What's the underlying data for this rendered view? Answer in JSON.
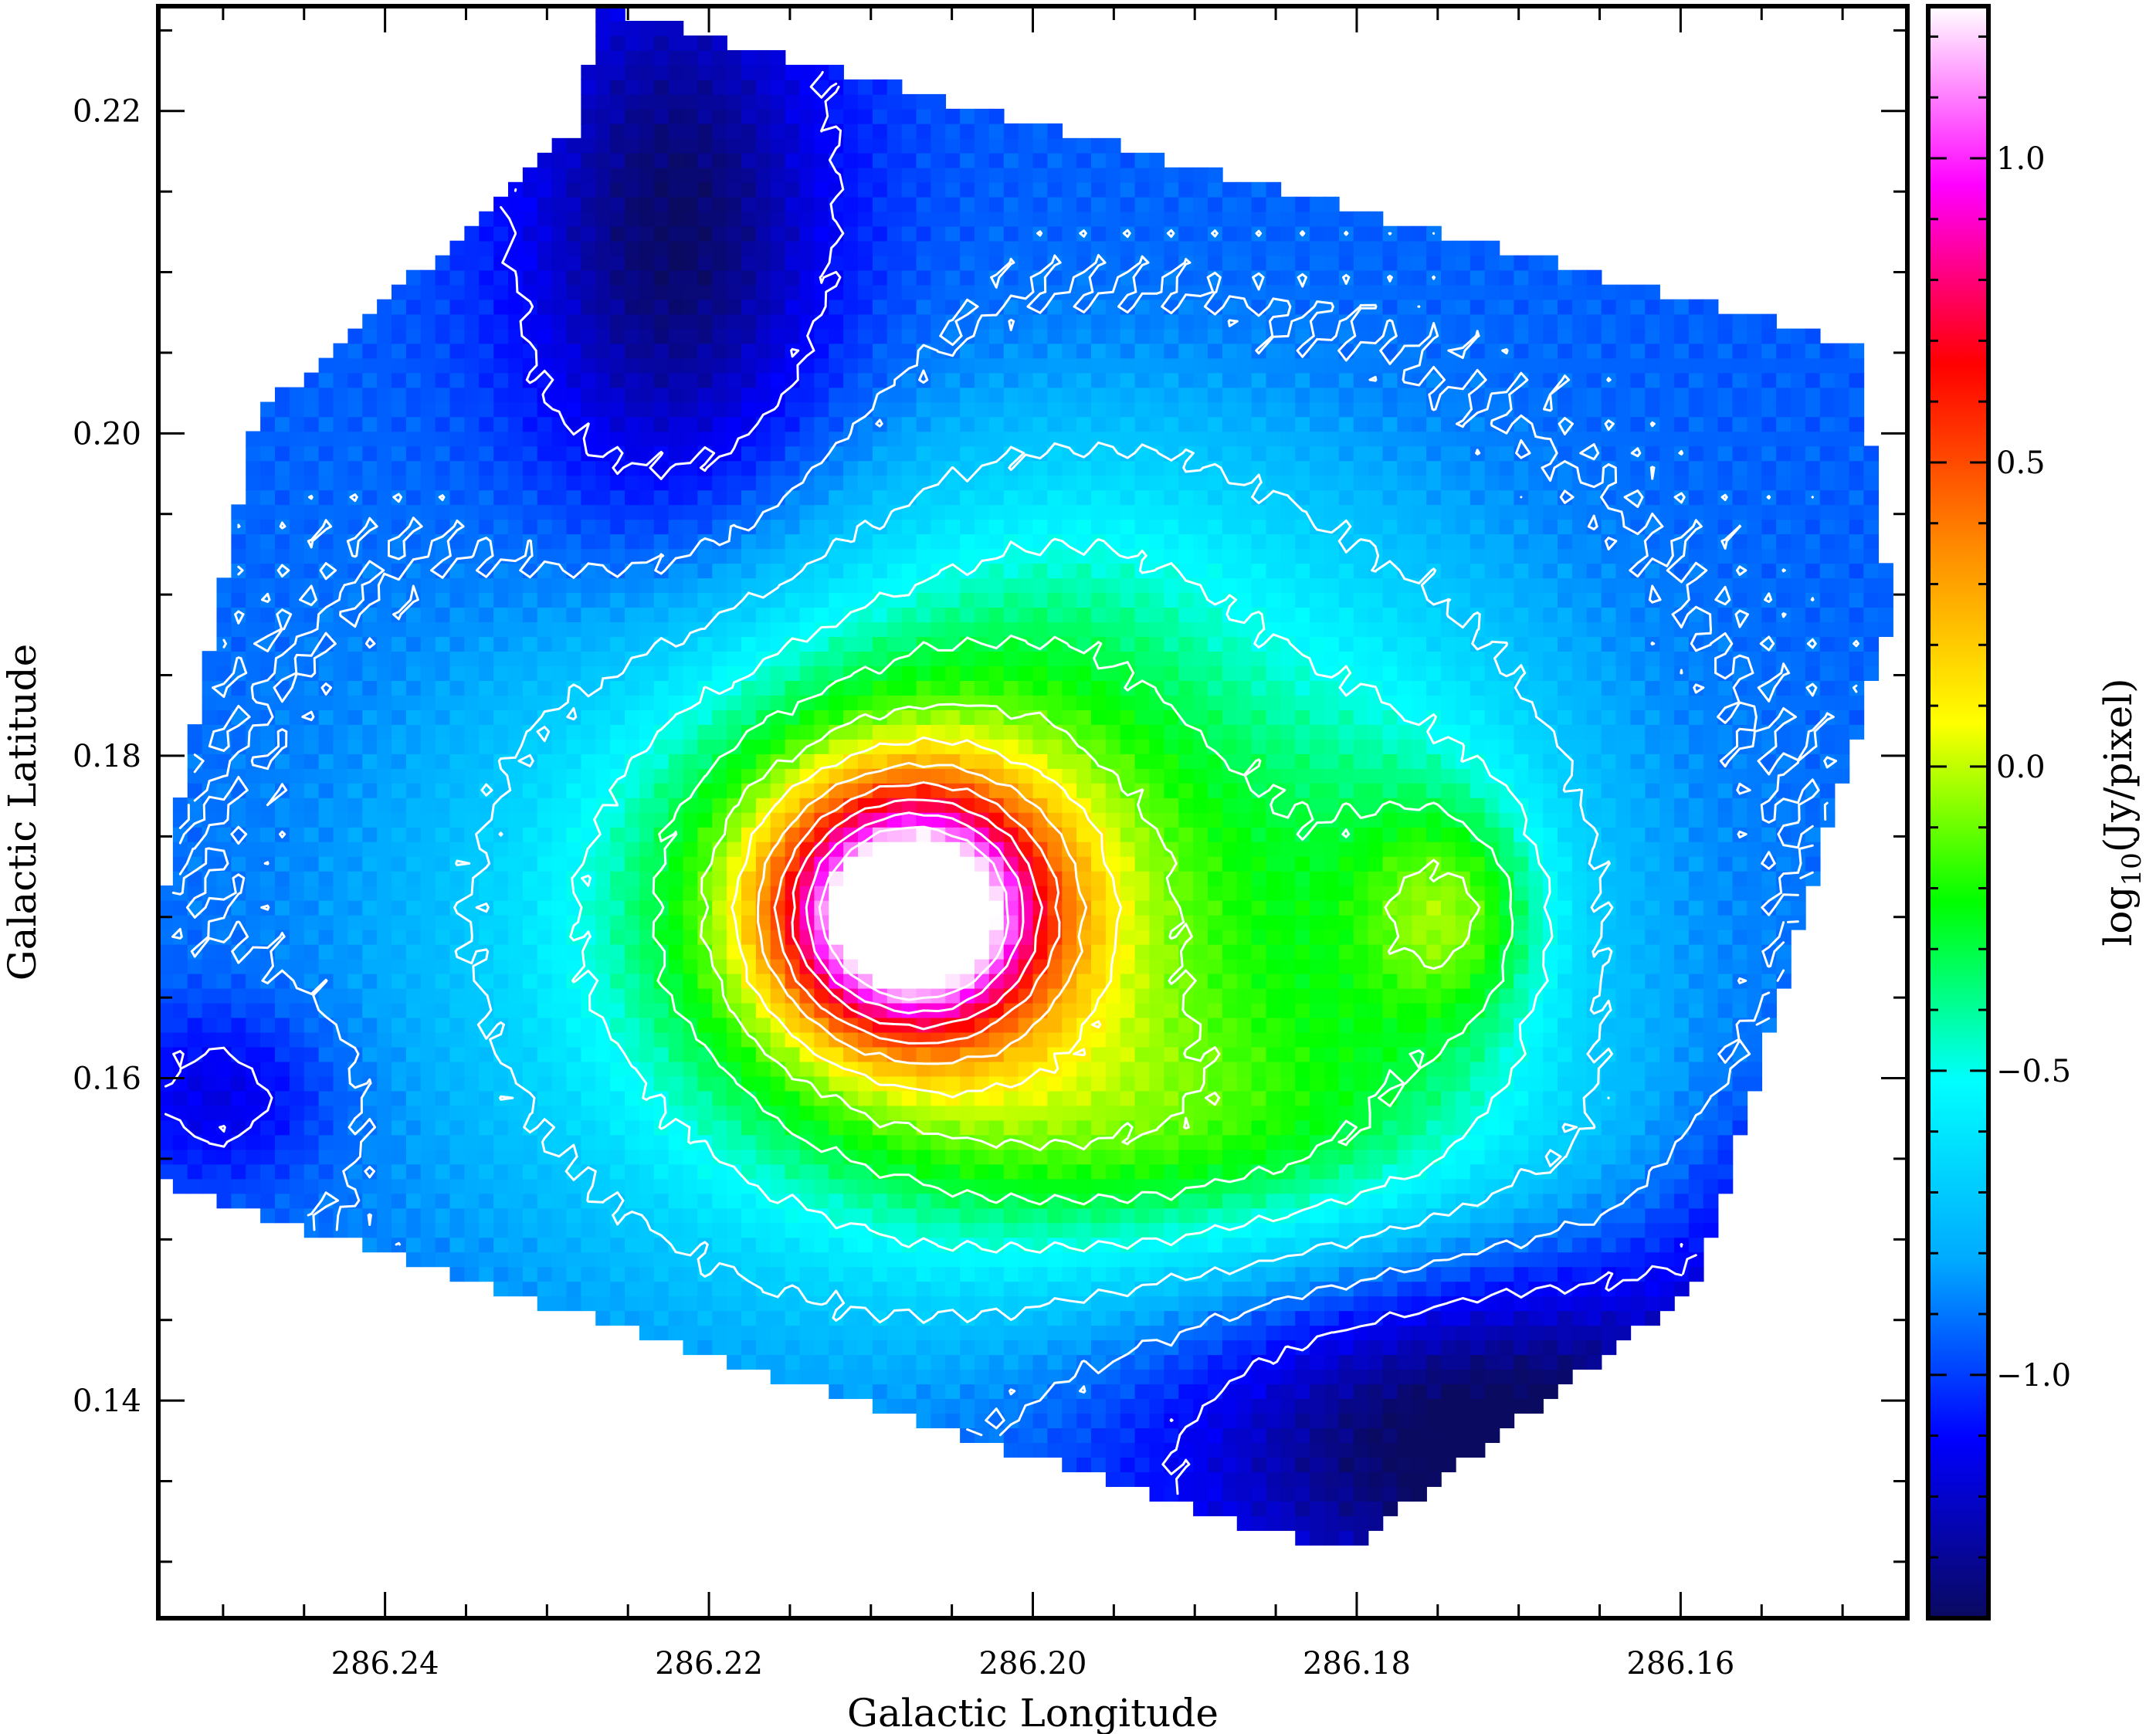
{
  "chart_data": {
    "type": "heatmap",
    "xlabel": "Galactic Longitude",
    "ylabel": "Galactic Latitude",
    "colorbar_label_parts": {
      "prefix": "log",
      "sub": "10",
      "suffix": "(Jy/pixel)"
    },
    "x_axis_reversed": true,
    "xlim": [
      286.254,
      286.146
    ],
    "ylim": [
      0.1265,
      0.2265
    ],
    "xticks": [
      {
        "value": 286.24,
        "label": "286.24"
      },
      {
        "value": 286.22,
        "label": "286.22"
      },
      {
        "value": 286.2,
        "label": "286.20"
      },
      {
        "value": 286.18,
        "label": "286.18"
      },
      {
        "value": 286.16,
        "label": "286.16"
      }
    ],
    "yticks": [
      {
        "value": 0.14,
        "label": "0.14"
      },
      {
        "value": 0.16,
        "label": "0.16"
      },
      {
        "value": 0.18,
        "label": "0.18"
      },
      {
        "value": 0.2,
        "label": "0.20"
      },
      {
        "value": 0.22,
        "label": "0.22"
      }
    ],
    "x_minor_step": 0.005,
    "y_minor_step": 0.005,
    "colorbar": {
      "range": [
        -1.4,
        1.25
      ],
      "ticks": [
        {
          "value": 1.0,
          "label": "1.0"
        },
        {
          "value": 0.5,
          "label": "0.5"
        },
        {
          "value": 0.0,
          "label": "0.0"
        },
        {
          "value": -0.5,
          "label": "−0.5"
        },
        {
          "value": -1.0,
          "label": "−1.0"
        }
      ],
      "minor_step": 0.1,
      "colormap": [
        "#0a0a60",
        "#0000ff",
        "#00aaff",
        "#00ffff",
        "#00ff00",
        "#ffff00",
        "#ff8800",
        "#ff0000",
        "#ff00ff",
        "#ffffff"
      ]
    },
    "contours": {
      "color": "#ffffff",
      "levels": [
        -1.1,
        -0.9,
        -0.7,
        -0.5,
        -0.3,
        -0.1,
        0.1,
        0.3,
        0.5,
        0.7,
        0.9,
        1.1
      ]
    },
    "peak": {
      "l": 286.2075,
      "b": 0.1705,
      "value": 1.22
    }
  }
}
